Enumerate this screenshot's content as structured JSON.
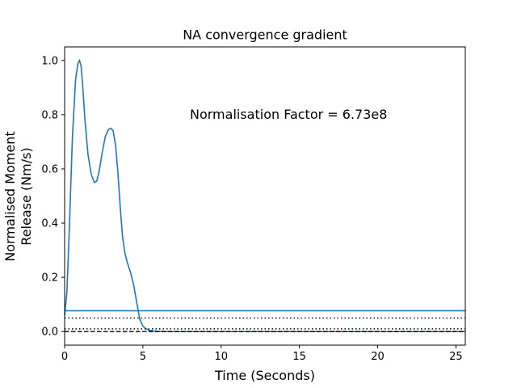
{
  "chart_data": {
    "type": "line",
    "title": "NA convergence gradient",
    "xlabel": "Time (Seconds)",
    "ylabel_lines": [
      "Normalised Moment",
      "Release (Nm/s)"
    ],
    "xlim": [
      0,
      25.6
    ],
    "ylim": [
      -0.05,
      1.05
    ],
    "xticks": [
      0,
      5,
      10,
      15,
      20,
      25
    ],
    "yticks": [
      0.0,
      0.2,
      0.4,
      0.6,
      0.8,
      1.0
    ],
    "xtick_labels": [
      "0",
      "5",
      "10",
      "15",
      "20",
      "25"
    ],
    "ytick_labels": [
      "0.0",
      "0.2",
      "0.4",
      "0.6",
      "0.8",
      "1.0"
    ],
    "grid": false,
    "annotation": "Normalisation Factor = 6.73e8",
    "series": [
      {
        "color": "#1f77b4",
        "style": "solid",
        "x": [
          0,
          0.15,
          0.3,
          0.5,
          0.7,
          0.85,
          0.95,
          1.05,
          1.15,
          1.3,
          1.5,
          1.7,
          1.9,
          2.05,
          2.2,
          2.4,
          2.6,
          2.8,
          2.95,
          3.1,
          3.25,
          3.4,
          3.55,
          3.7,
          3.85,
          4.0,
          4.2,
          4.4,
          4.6,
          4.8,
          5.0,
          5.2,
          5.4,
          5.7,
          6.0,
          6.5,
          7,
          8,
          10,
          15,
          20,
          25.6
        ],
        "y": [
          0.06,
          0.15,
          0.38,
          0.72,
          0.93,
          0.99,
          1.0,
          0.98,
          0.91,
          0.78,
          0.65,
          0.58,
          0.55,
          0.555,
          0.59,
          0.66,
          0.72,
          0.745,
          0.75,
          0.74,
          0.69,
          0.59,
          0.46,
          0.35,
          0.29,
          0.255,
          0.22,
          0.175,
          0.11,
          0.045,
          0.02,
          0.01,
          0.005,
          0.002,
          0.001,
          0.0,
          0.0,
          0.0,
          0.0,
          0.0,
          0.0,
          0.0
        ]
      },
      {
        "color": "#1f77b4",
        "style": "solid",
        "x": [
          0,
          25.6
        ],
        "y": [
          0.077,
          0.077
        ]
      },
      {
        "color": "#000000",
        "style": "dotted",
        "x": [
          0,
          25.6
        ],
        "y": [
          0.05,
          0.05
        ]
      },
      {
        "color": "#000000",
        "style": "dashed",
        "x": [
          0,
          25.6
        ],
        "y": [
          0.0,
          0.0
        ]
      },
      {
        "color": "#000000",
        "style": "dotted",
        "x": [
          0,
          25.6
        ],
        "y": [
          0.01,
          0.01
        ]
      }
    ]
  }
}
